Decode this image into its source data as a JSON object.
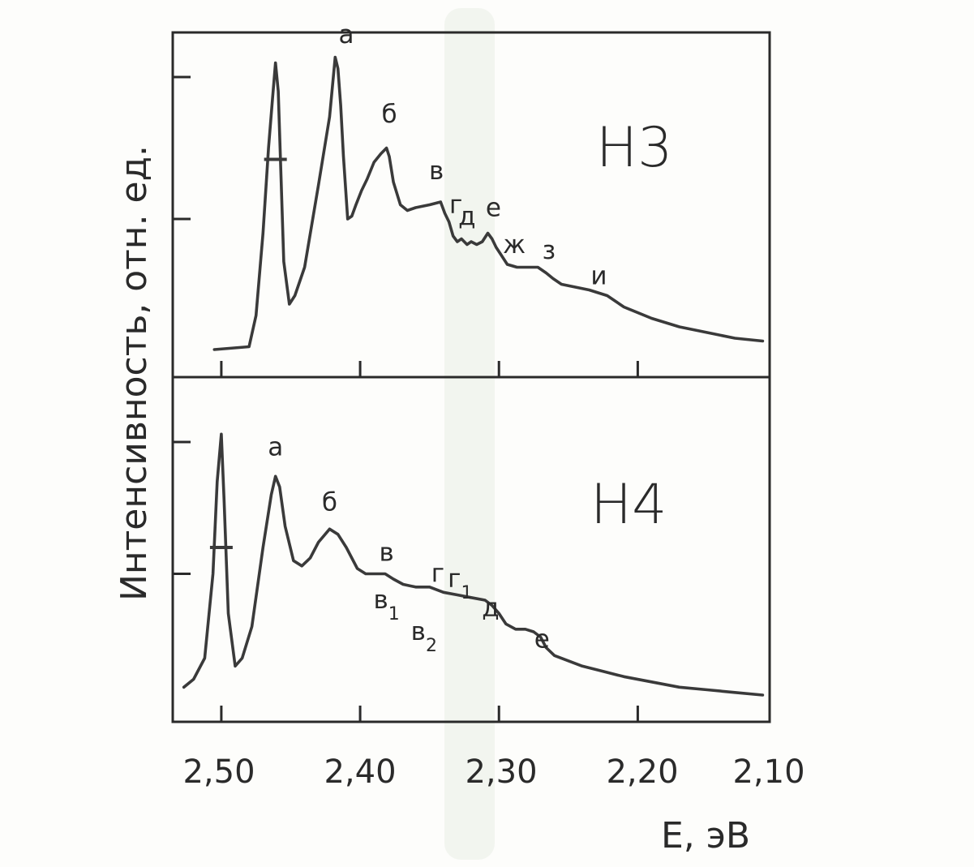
{
  "chart_data": [
    {
      "type": "line",
      "panel_label": "Н3",
      "xlim": [
        2.535,
        2.105
      ],
      "ylim": [
        0,
        1.0
      ],
      "x_ticks": [
        2.5,
        2.4,
        2.3,
        2.2
      ],
      "series": [
        {
          "x": [
            2.505,
            2.48,
            2.475,
            2.47,
            2.466,
            2.463,
            2.461,
            2.459,
            2.457,
            2.455,
            2.451,
            2.447,
            2.44,
            2.43,
            2.422,
            2.418,
            2.416,
            2.414,
            2.412,
            2.409,
            2.406,
            2.403,
            2.399,
            2.395,
            2.39,
            2.385,
            2.381,
            2.379,
            2.376,
            2.371,
            2.366,
            2.36,
            2.35,
            2.342,
            2.339,
            2.336,
            2.333,
            2.33,
            2.327,
            2.323,
            2.32,
            2.316,
            2.312,
            2.308,
            2.305,
            2.302,
            2.298,
            2.294,
            2.287,
            2.28,
            2.272,
            2.266,
            2.261,
            2.255,
            2.245,
            2.235,
            2.222,
            2.21,
            2.19,
            2.17,
            2.15,
            2.13,
            2.11
          ],
          "y": [
            0.04,
            0.05,
            0.16,
            0.45,
            0.75,
            0.93,
            1.05,
            0.95,
            0.65,
            0.35,
            0.2,
            0.23,
            0.33,
            0.62,
            0.86,
            1.07,
            1.03,
            0.9,
            0.72,
            0.5,
            0.51,
            0.55,
            0.6,
            0.64,
            0.7,
            0.73,
            0.75,
            0.72,
            0.63,
            0.55,
            0.53,
            0.54,
            0.55,
            0.56,
            0.52,
            0.49,
            0.44,
            0.42,
            0.43,
            0.41,
            0.42,
            0.41,
            0.42,
            0.45,
            0.43,
            0.4,
            0.37,
            0.34,
            0.33,
            0.33,
            0.33,
            0.31,
            0.29,
            0.27,
            0.26,
            0.25,
            0.23,
            0.19,
            0.15,
            0.12,
            0.1,
            0.08,
            0.07
          ]
        }
      ],
      "marker": {
        "x": 2.461,
        "y": 0.71
      },
      "y_ticks": [
        0.5,
        1.0
      ],
      "peak_labels": [
        {
          "text": "а",
          "x": 2.41,
          "y": 1.12
        },
        {
          "text": "б",
          "x": 2.379,
          "y": 0.84
        },
        {
          "text": "в",
          "x": 2.345,
          "y": 0.64
        },
        {
          "text": "г",
          "x": 2.331,
          "y": 0.52
        },
        {
          "text": "д",
          "x": 2.323,
          "y": 0.48
        },
        {
          "text": "е",
          "x": 2.304,
          "y": 0.51
        },
        {
          "text": "ж",
          "x": 2.289,
          "y": 0.38
        },
        {
          "text": "з",
          "x": 2.264,
          "y": 0.36
        },
        {
          "text": "и",
          "x": 2.228,
          "y": 0.27
        }
      ]
    },
    {
      "type": "line",
      "panel_label": "Н4",
      "xlim": [
        2.535,
        2.105
      ],
      "ylim": [
        0,
        1.0
      ],
      "x_ticks": [
        2.5,
        2.4,
        2.3,
        2.2
      ],
      "series": [
        {
          "x": [
            2.527,
            2.52,
            2.512,
            2.506,
            2.503,
            2.5,
            2.498,
            2.495,
            2.49,
            2.485,
            2.478,
            2.47,
            2.464,
            2.461,
            2.458,
            2.454,
            2.448,
            2.442,
            2.436,
            2.43,
            2.422,
            2.416,
            2.41,
            2.402,
            2.396,
            2.39,
            2.382,
            2.376,
            2.369,
            2.36,
            2.35,
            2.34,
            2.33,
            2.32,
            2.31,
            2.305,
            2.3,
            2.295,
            2.288,
            2.281,
            2.275,
            2.27,
            2.266,
            2.26,
            2.25,
            2.24,
            2.225,
            2.21,
            2.19,
            2.17,
            2.15,
            2.13,
            2.11
          ],
          "y": [
            0.07,
            0.1,
            0.18,
            0.5,
            0.85,
            1.03,
            0.78,
            0.35,
            0.15,
            0.18,
            0.3,
            0.6,
            0.8,
            0.87,
            0.83,
            0.68,
            0.55,
            0.53,
            0.56,
            0.62,
            0.67,
            0.65,
            0.6,
            0.52,
            0.5,
            0.5,
            0.5,
            0.48,
            0.46,
            0.45,
            0.45,
            0.43,
            0.42,
            0.41,
            0.4,
            0.38,
            0.35,
            0.31,
            0.29,
            0.29,
            0.28,
            0.26,
            0.22,
            0.19,
            0.17,
            0.15,
            0.13,
            0.11,
            0.09,
            0.07,
            0.06,
            0.05,
            0.04
          ]
        }
      ],
      "marker": {
        "x": 2.5,
        "y": 0.6
      },
      "y_ticks": [
        0.5,
        1.0
      ],
      "peak_labels": [
        {
          "text": "а",
          "x": 2.461,
          "y": 0.95
        },
        {
          "text": "б",
          "x": 2.422,
          "y": 0.74
        },
        {
          "text": "в",
          "x": 2.381,
          "y": 0.55
        },
        {
          "text": "в",
          "sub": "1",
          "x": 2.381,
          "y": 0.37
        },
        {
          "text": "в",
          "sub": "2",
          "x": 2.354,
          "y": 0.25
        },
        {
          "text": "г",
          "x": 2.344,
          "y": 0.47
        },
        {
          "text": "г",
          "sub": "1",
          "x": 2.328,
          "y": 0.45
        },
        {
          "text": "д",
          "x": 2.306,
          "y": 0.34
        },
        {
          "text": "е",
          "x": 2.269,
          "y": 0.22
        }
      ]
    }
  ],
  "y_axis_title": "Интенсивность, отн. ед.",
  "x_axis_title": "E, эВ",
  "x_tick_labels": [
    "2,50",
    "2,40",
    "2,30",
    "2,20",
    "2,10"
  ]
}
